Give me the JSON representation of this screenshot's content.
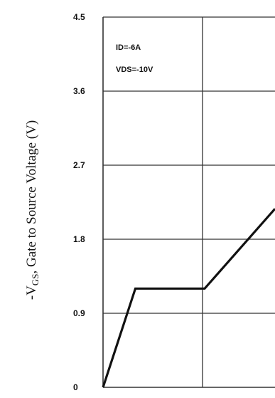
{
  "chart_data": {
    "type": "line",
    "title": "",
    "ylabel": {
      "prefix": "-V",
      "subscript": "GS",
      "suffix": ", Gate to Source Voltage (V)"
    },
    "xlabel": "",
    "ylim": [
      0,
      4.5
    ],
    "yticks": [
      "0",
      "0.9",
      "1.8",
      "2.7",
      "3.6",
      "4.5"
    ],
    "xlim": [
      0,
      1
    ],
    "grid": true,
    "annotations": [
      "ID=-6A",
      "VDS=-10V"
    ],
    "series": [
      {
        "x": [
          0,
          0.188,
          0.591,
          1.0
        ],
        "y": [
          0,
          1.2,
          1.2,
          2.17
        ]
      }
    ],
    "colors": {
      "line": "#111111",
      "grid": "#333333",
      "background": "#ffffff"
    }
  }
}
